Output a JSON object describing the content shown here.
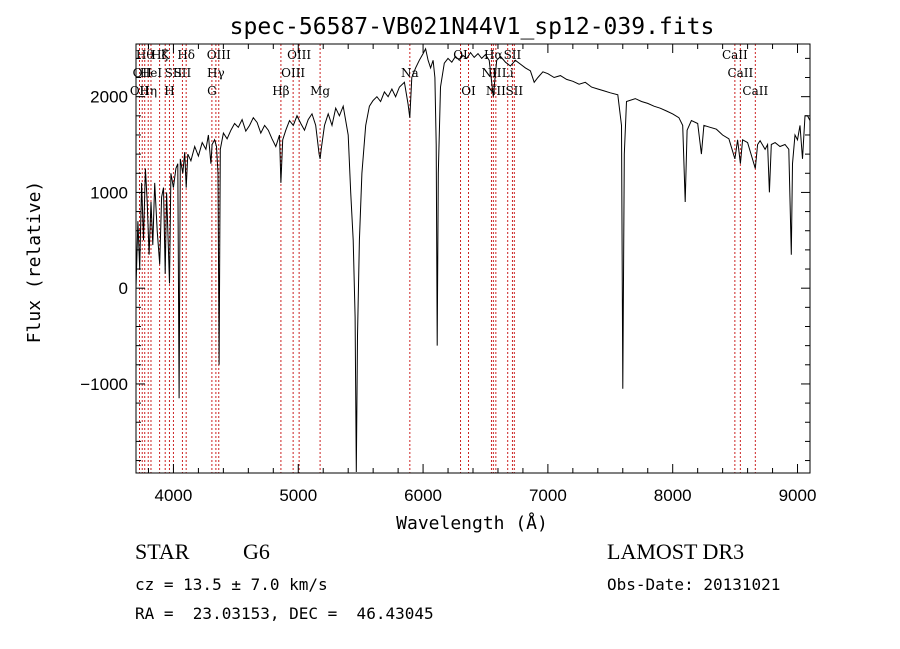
{
  "chart_data": {
    "type": "line",
    "title": "spec-56587-VB021N44V1_sp12-039.fits",
    "xlabel": "Wavelength (Å)",
    "ylabel": "Flux (relative)",
    "xlim": [
      3700,
      9100
    ],
    "ylim": [
      -1930,
      2550
    ],
    "x_ticks": [
      {
        "value": 4000,
        "label": "4000"
      },
      {
        "value": 5000,
        "label": "5000"
      },
      {
        "value": 6000,
        "label": "6000"
      },
      {
        "value": 7000,
        "label": "7000"
      },
      {
        "value": 8000,
        "label": "8000"
      },
      {
        "value": 9000,
        "label": "9000"
      }
    ],
    "y_ticks": [
      {
        "value": -1000,
        "label": "−1000"
      },
      {
        "value": 0,
        "label": "0"
      },
      {
        "value": 1000,
        "label": "1000"
      },
      {
        "value": 2000,
        "label": "2000"
      }
    ],
    "line_color": "#000000",
    "marker_color": "#cc2222",
    "spectral_lines": [
      {
        "wavelength": 3728,
        "label": "OII",
        "row": 2
      },
      {
        "wavelength": 3750,
        "label": "OII",
        "row": 1
      },
      {
        "wavelength": 3770,
        "label": "Hθ",
        "row": 0
      },
      {
        "wavelength": 3798,
        "label": "Hη",
        "row": 2
      },
      {
        "wavelength": 3820,
        "label": "HeI",
        "row": 1
      },
      {
        "wavelength": 3889,
        "label": "Hζ",
        "row": 0
      },
      {
        "wavelength": 3934,
        "label": "K",
        "row": 0
      },
      {
        "wavelength": 3968,
        "label": "H",
        "row": 2
      },
      {
        "wavelength": 4000,
        "label": "SII",
        "row": 1
      },
      {
        "wavelength": 4072,
        "label": "SII",
        "row": 1
      },
      {
        "wavelength": 4102,
        "label": "Hδ",
        "row": 0
      },
      {
        "wavelength": 4308,
        "label": "G",
        "row": 2
      },
      {
        "wavelength": 4340,
        "label": "Hγ",
        "row": 1
      },
      {
        "wavelength": 4363,
        "label": "OIII",
        "row": 0
      },
      {
        "wavelength": 4861,
        "label": "Hβ",
        "row": 2
      },
      {
        "wavelength": 4959,
        "label": "OIII",
        "row": 1
      },
      {
        "wavelength": 5007,
        "label": "OIII",
        "row": 0
      },
      {
        "wavelength": 5175,
        "label": "Mg",
        "row": 2
      },
      {
        "wavelength": 5894,
        "label": "Na",
        "row": 1
      },
      {
        "wavelength": 6300,
        "label": "OI",
        "row": 0
      },
      {
        "wavelength": 6364,
        "label": "OI",
        "row": 2
      },
      {
        "wavelength": 6548,
        "label": "NII",
        "row": 1
      },
      {
        "wavelength": 6563,
        "label": "Hα",
        "row": 0
      },
      {
        "wavelength": 6583,
        "label": "NII",
        "row": 2
      },
      {
        "wavelength": 6678,
        "label": "Li",
        "row": 1
      },
      {
        "wavelength": 6716,
        "label": "SII",
        "row": 0
      },
      {
        "wavelength": 6731,
        "label": "SII",
        "row": 2
      },
      {
        "wavelength": 8498,
        "label": "CaII",
        "row": 0
      },
      {
        "wavelength": 8542,
        "label": "CaII",
        "row": 1
      },
      {
        "wavelength": 8662,
        "label": "CaII",
        "row": 2
      }
    ],
    "series": [
      {
        "name": "flux",
        "points": [
          [
            3700,
            0
          ],
          [
            3715,
            700
          ],
          [
            3730,
            200
          ],
          [
            3745,
            1100
          ],
          [
            3760,
            500
          ],
          [
            3775,
            1250
          ],
          [
            3790,
            900
          ],
          [
            3805,
            350
          ],
          [
            3820,
            900
          ],
          [
            3835,
            450
          ],
          [
            3850,
            1100
          ],
          [
            3870,
            600
          ],
          [
            3890,
            250
          ],
          [
            3905,
            950
          ],
          [
            3920,
            1050
          ],
          [
            3934,
            150
          ],
          [
            3945,
            1000
          ],
          [
            3968,
            50
          ],
          [
            3980,
            1200
          ],
          [
            4000,
            1050
          ],
          [
            4020,
            1250
          ],
          [
            4035,
            1300
          ],
          [
            4045,
            -1150
          ],
          [
            4055,
            1350
          ],
          [
            4075,
            1200
          ],
          [
            4090,
            1420
          ],
          [
            4102,
            1050
          ],
          [
            4115,
            1400
          ],
          [
            4140,
            1330
          ],
          [
            4170,
            1480
          ],
          [
            4200,
            1380
          ],
          [
            4230,
            1520
          ],
          [
            4260,
            1450
          ],
          [
            4280,
            1600
          ],
          [
            4300,
            1300
          ],
          [
            4310,
            1500
          ],
          [
            4330,
            1550
          ],
          [
            4345,
            1480
          ],
          [
            4357,
            1200
          ],
          [
            4366,
            -800
          ],
          [
            4375,
            1450
          ],
          [
            4400,
            1620
          ],
          [
            4430,
            1560
          ],
          [
            4460,
            1650
          ],
          [
            4490,
            1720
          ],
          [
            4520,
            1680
          ],
          [
            4550,
            1760
          ],
          [
            4580,
            1640
          ],
          [
            4610,
            1700
          ],
          [
            4640,
            1780
          ],
          [
            4670,
            1730
          ],
          [
            4700,
            1620
          ],
          [
            4730,
            1700
          ],
          [
            4760,
            1650
          ],
          [
            4790,
            1560
          ],
          [
            4820,
            1480
          ],
          [
            4850,
            1600
          ],
          [
            4861,
            1100
          ],
          [
            4875,
            1550
          ],
          [
            4900,
            1650
          ],
          [
            4930,
            1750
          ],
          [
            4960,
            1700
          ],
          [
            4990,
            1800
          ],
          [
            5020,
            1720
          ],
          [
            5050,
            1650
          ],
          [
            5080,
            1760
          ],
          [
            5110,
            1820
          ],
          [
            5140,
            1700
          ],
          [
            5167,
            1400
          ],
          [
            5175,
            1350
          ],
          [
            5184,
            1450
          ],
          [
            5210,
            1700
          ],
          [
            5240,
            1820
          ],
          [
            5270,
            1700
          ],
          [
            5300,
            1880
          ],
          [
            5330,
            1800
          ],
          [
            5360,
            1900
          ],
          [
            5400,
            1600
          ],
          [
            5420,
            1000
          ],
          [
            5440,
            500
          ],
          [
            5455,
            -300
          ],
          [
            5465,
            -1920
          ],
          [
            5475,
            -500
          ],
          [
            5490,
            500
          ],
          [
            5510,
            1200
          ],
          [
            5540,
            1700
          ],
          [
            5570,
            1900
          ],
          [
            5600,
            1960
          ],
          [
            5630,
            2000
          ],
          [
            5660,
            1950
          ],
          [
            5690,
            2050
          ],
          [
            5720,
            2000
          ],
          [
            5750,
            2080
          ],
          [
            5780,
            2000
          ],
          [
            5810,
            2100
          ],
          [
            5850,
            2150
          ],
          [
            5880,
            1920
          ],
          [
            5894,
            1780
          ],
          [
            5910,
            2200
          ],
          [
            5940,
            2300
          ],
          [
            5970,
            2380
          ],
          [
            6000,
            2450
          ],
          [
            6020,
            2500
          ],
          [
            6040,
            2380
          ],
          [
            6060,
            2300
          ],
          [
            6080,
            2380
          ],
          [
            6095,
            2200
          ],
          [
            6105,
            1500
          ],
          [
            6113,
            -600
          ],
          [
            6122,
            1200
          ],
          [
            6140,
            2100
          ],
          [
            6170,
            2350
          ],
          [
            6200,
            2400
          ],
          [
            6230,
            2360
          ],
          [
            6260,
            2420
          ],
          [
            6290,
            2380
          ],
          [
            6320,
            2430
          ],
          [
            6350,
            2400
          ],
          [
            6380,
            2460
          ],
          [
            6410,
            2410
          ],
          [
            6440,
            2450
          ],
          [
            6470,
            2400
          ],
          [
            6500,
            2440
          ],
          [
            6530,
            2380
          ],
          [
            6563,
            2000
          ],
          [
            6590,
            2380
          ],
          [
            6620,
            2420
          ],
          [
            6660,
            2360
          ],
          [
            6700,
            2320
          ],
          [
            6740,
            2380
          ],
          [
            6780,
            2340
          ],
          [
            6820,
            2300
          ],
          [
            6860,
            2270
          ],
          [
            6890,
            2150
          ],
          [
            6920,
            2200
          ],
          [
            6960,
            2260
          ],
          [
            7000,
            2240
          ],
          [
            7050,
            2200
          ],
          [
            7100,
            2220
          ],
          [
            7150,
            2180
          ],
          [
            7200,
            2160
          ],
          [
            7250,
            2130
          ],
          [
            7300,
            2150
          ],
          [
            7350,
            2100
          ],
          [
            7400,
            2080
          ],
          [
            7450,
            2060
          ],
          [
            7500,
            2040
          ],
          [
            7560,
            2020
          ],
          [
            7590,
            1700
          ],
          [
            7600,
            -1050
          ],
          [
            7612,
            1400
          ],
          [
            7630,
            1950
          ],
          [
            7700,
            1980
          ],
          [
            7750,
            1950
          ],
          [
            7800,
            1930
          ],
          [
            7850,
            1900
          ],
          [
            7900,
            1880
          ],
          [
            7950,
            1850
          ],
          [
            8000,
            1820
          ],
          [
            8050,
            1780
          ],
          [
            8080,
            1700
          ],
          [
            8100,
            900
          ],
          [
            8115,
            1650
          ],
          [
            8150,
            1750
          ],
          [
            8200,
            1720
          ],
          [
            8230,
            1400
          ],
          [
            8250,
            1700
          ],
          [
            8300,
            1680
          ],
          [
            8350,
            1660
          ],
          [
            8400,
            1600
          ],
          [
            8450,
            1560
          ],
          [
            8498,
            1350
          ],
          [
            8520,
            1550
          ],
          [
            8542,
            1300
          ],
          [
            8560,
            1550
          ],
          [
            8600,
            1520
          ],
          [
            8662,
            1250
          ],
          [
            8680,
            1500
          ],
          [
            8700,
            1540
          ],
          [
            8740,
            1450
          ],
          [
            8760,
            1500
          ],
          [
            8775,
            1000
          ],
          [
            8790,
            1500
          ],
          [
            8820,
            1520
          ],
          [
            8860,
            1480
          ],
          [
            8900,
            1500
          ],
          [
            8930,
            1450
          ],
          [
            8950,
            350
          ],
          [
            8960,
            1300
          ],
          [
            8980,
            1600
          ],
          [
            9000,
            1550
          ],
          [
            9020,
            1700
          ],
          [
            9040,
            1350
          ],
          [
            9060,
            1800
          ],
          [
            9080,
            1800
          ],
          [
            9100,
            1750
          ]
        ]
      }
    ]
  },
  "info": {
    "object_class": "STAR",
    "subclass": "G6",
    "survey": "LAMOST DR3",
    "redshift": "cz = 13.5 ± 7.0 km/s",
    "obs_date": "Obs-Date: 20131021",
    "coords": "RA =  23.03153, DEC =  46.43045"
  }
}
